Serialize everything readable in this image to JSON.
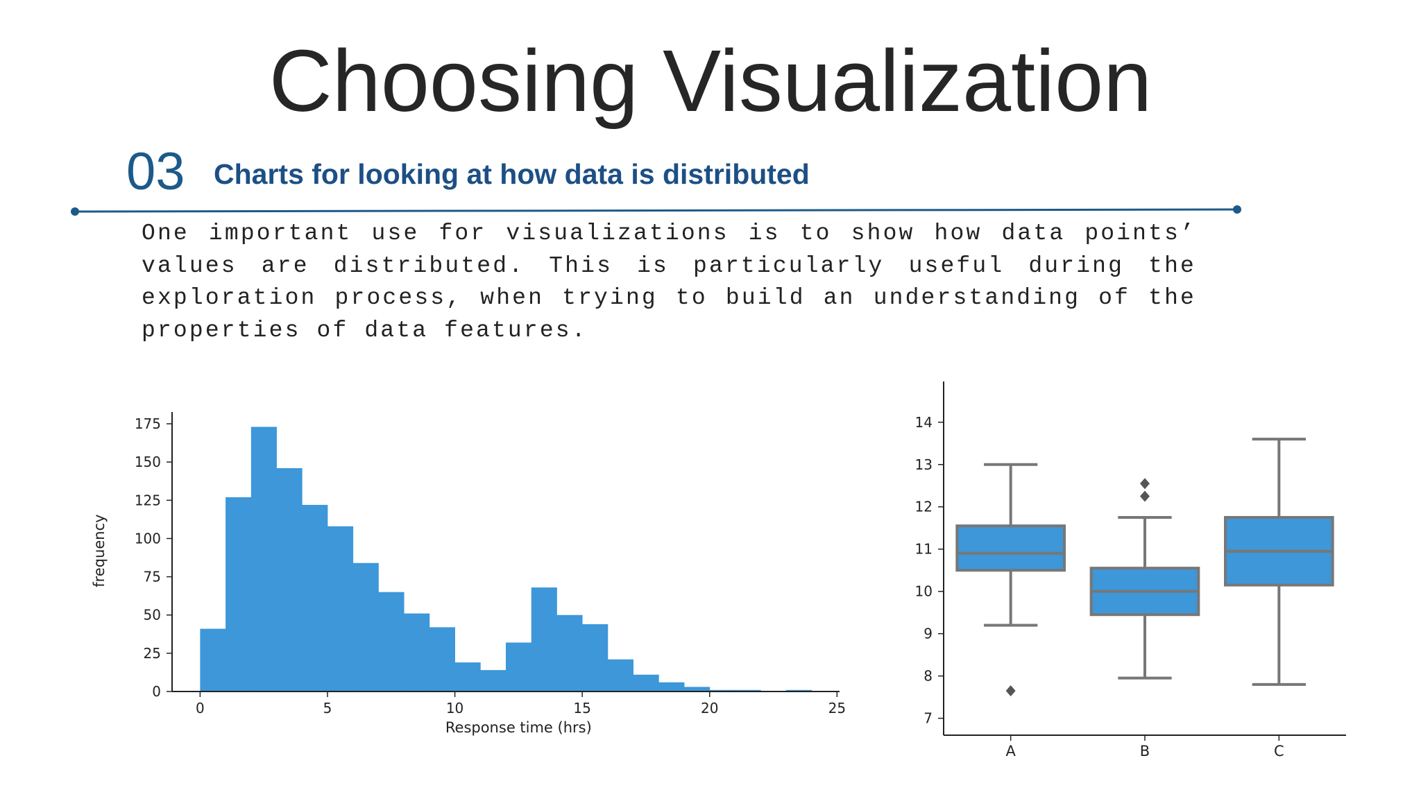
{
  "slide": {
    "title": "Choosing Visualization",
    "section_number": "03",
    "section_heading": "Charts for looking at how data is distributed",
    "description": "One important use for visualizations is to show how data points’ values are distributed. This is particularly useful during the exploration process, when trying to build an understanding of the properties of data features.",
    "accent_color": "#1c5a8a"
  },
  "chart_data": [
    {
      "type": "bar",
      "subtype": "histogram",
      "xlabel": "Response time (hrs)",
      "ylabel": "frequency",
      "bin_width": 1,
      "bins": [
        {
          "x0": 0,
          "x1": 1,
          "value": 41
        },
        {
          "x0": 1,
          "x1": 2,
          "value": 127
        },
        {
          "x0": 2,
          "x1": 3,
          "value": 173
        },
        {
          "x0": 3,
          "x1": 4,
          "value": 146
        },
        {
          "x0": 4,
          "x1": 5,
          "value": 122
        },
        {
          "x0": 5,
          "x1": 6,
          "value": 108
        },
        {
          "x0": 6,
          "x1": 7,
          "value": 84
        },
        {
          "x0": 7,
          "x1": 8,
          "value": 65
        },
        {
          "x0": 8,
          "x1": 9,
          "value": 51
        },
        {
          "x0": 9,
          "x1": 10,
          "value": 42
        },
        {
          "x0": 10,
          "x1": 11,
          "value": 19
        },
        {
          "x0": 11,
          "x1": 12,
          "value": 14
        },
        {
          "x0": 12,
          "x1": 13,
          "value": 32
        },
        {
          "x0": 13,
          "x1": 14,
          "value": 68
        },
        {
          "x0": 14,
          "x1": 15,
          "value": 50
        },
        {
          "x0": 15,
          "x1": 16,
          "value": 44
        },
        {
          "x0": 16,
          "x1": 17,
          "value": 21
        },
        {
          "x0": 17,
          "x1": 18,
          "value": 11
        },
        {
          "x0": 18,
          "x1": 19,
          "value": 6
        },
        {
          "x0": 19,
          "x1": 20,
          "value": 3
        },
        {
          "x0": 20,
          "x1": 21,
          "value": 1
        },
        {
          "x0": 21,
          "x1": 22,
          "value": 1
        },
        {
          "x0": 22,
          "x1": 23,
          "value": 0
        },
        {
          "x0": 23,
          "x1": 24,
          "value": 1
        }
      ],
      "xlim": [
        -1.1,
        25.1
      ],
      "ylim": [
        0,
        180
      ],
      "xticks": [
        0,
        5,
        10,
        15,
        20,
        25
      ],
      "yticks": [
        0,
        25,
        50,
        75,
        100,
        125,
        150,
        175
      ],
      "bar_color": "#3d97d9",
      "grid": false
    },
    {
      "type": "boxplot",
      "categories": [
        "A",
        "B",
        "C"
      ],
      "boxes": [
        {
          "name": "A",
          "whisker_low": 9.2,
          "q1": 10.5,
          "median": 10.9,
          "q3": 11.55,
          "whisker_high": 13.0,
          "outliers": [
            7.65
          ]
        },
        {
          "name": "B",
          "whisker_low": 7.95,
          "q1": 9.45,
          "median": 10.0,
          "q3": 10.55,
          "whisker_high": 11.75,
          "outliers": [
            12.25,
            12.55
          ]
        },
        {
          "name": "C",
          "whisker_low": 7.8,
          "q1": 10.15,
          "median": 10.95,
          "q3": 11.75,
          "whisker_high": 13.6,
          "outliers": []
        }
      ],
      "ylim": [
        6.6,
        14.8
      ],
      "yticks": [
        7,
        8,
        9,
        10,
        11,
        12,
        13,
        14
      ],
      "box_color": "#3d97d9",
      "line_color": "#777777",
      "grid": false
    }
  ]
}
